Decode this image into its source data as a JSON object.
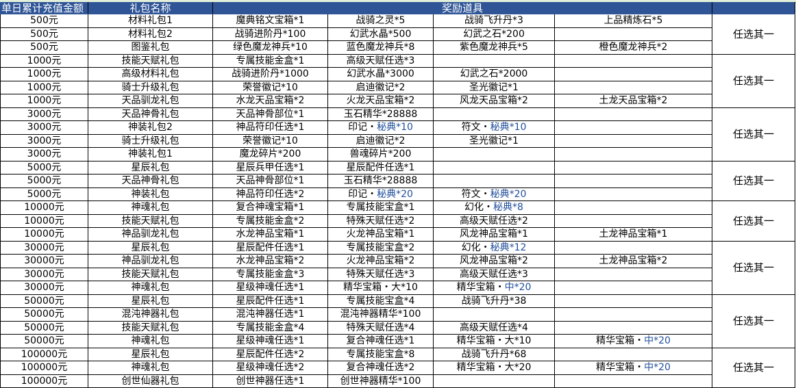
{
  "header": {
    "amount": "单日累计充值金额",
    "package_name": "礼包名称",
    "rewards": "奖励道具"
  },
  "colors": {
    "header_bg": "#2f5597",
    "highlight_text": "#1f4e9a"
  },
  "groups": [
    {
      "note": "任选其一",
      "rows": [
        {
          "amount": "500元",
          "name": "材料礼包1",
          "items": [
            "魔典铭文宝箱*1",
            "战骑之灵*5",
            "战骑飞升丹*3",
            "上品精炼石*5"
          ]
        },
        {
          "amount": "500元",
          "name": "材料礼包2",
          "items": [
            "战骑进阶丹*100",
            "幻武水晶*500",
            "幻武之石*200",
            ""
          ]
        },
        {
          "amount": "500元",
          "name": "图鉴礼包",
          "items": [
            "绿色魔龙神兵*10",
            "蓝色魔龙神兵*8",
            "紫色魔龙神兵*5",
            "橙色魔龙神兵*2"
          ]
        }
      ]
    },
    {
      "note": "任选其一",
      "rows": [
        {
          "amount": "1000元",
          "name": "技能天赋礼包",
          "items": [
            "专属技能金盒*1",
            "高级天赋任选*3",
            "",
            ""
          ]
        },
        {
          "amount": "1000元",
          "name": "高级材料礼包",
          "items": [
            "战骑进阶丹*1000",
            "幻武水晶*3000",
            "幻武之石*2000",
            ""
          ]
        },
        {
          "amount": "1000元",
          "name": "骑士升级礼包",
          "items": [
            "荣誉徽记*10",
            "启迪徽记*2",
            "圣光徽记*1",
            ""
          ]
        },
        {
          "amount": "1000元",
          "name": "天品驯龙礼包",
          "items": [
            "水龙天品宝箱*2",
            "火龙天品宝箱*2",
            "风龙天品宝箱*2",
            "土龙天品宝箱*2"
          ]
        }
      ]
    },
    {
      "note": "任选其一",
      "rows": [
        {
          "amount": "3000元",
          "name": "天品神骨礼包",
          "items": [
            "天品神骨部位*1",
            "玉石精华*28888",
            "",
            ""
          ]
        },
        {
          "amount": "3000元",
          "name": "神装礼包2",
          "items": [
            "神品符印任选*1",
            {
              "text": "印记・",
              "blue": "秘典*10"
            },
            {
              "text": "符文・",
              "blue": "秘典*10"
            },
            ""
          ]
        },
        {
          "amount": "3000元",
          "name": "骑士升级礼包",
          "items": [
            "荣誉徽记*10",
            "启迪徽记*2",
            "圣光徽记*1",
            ""
          ]
        },
        {
          "amount": "3000元",
          "name": "神装礼包1",
          "items": [
            "魔龙碎片*200",
            "兽魂碎片*200",
            "",
            ""
          ]
        }
      ]
    },
    {
      "note": "任选其一",
      "rows": [
        {
          "amount": "5000元",
          "name": "星辰礼包",
          "items": [
            "星辰兵甲任选*1",
            "星辰配件任选*1",
            "",
            ""
          ]
        },
        {
          "amount": "5000元",
          "name": "天品神骨礼包",
          "items": [
            "天品神骨部位*1",
            "玉石精华*28888",
            "",
            ""
          ]
        },
        {
          "amount": "5000元",
          "name": "神装礼包",
          "items": [
            "神品符印任选*2",
            {
              "text": "印记・",
              "blue": "秘典*20"
            },
            {
              "text": "符文・",
              "blue": "秘典*20"
            },
            ""
          ]
        }
      ]
    },
    {
      "note": "任选其一",
      "rows": [
        {
          "amount": "10000元",
          "name": "神魂礼包",
          "items": [
            "复合神魂宝箱*1",
            "专属技能宝盒*1",
            {
              "text": "幻化・",
              "blue": "秘典*8"
            },
            ""
          ]
        },
        {
          "amount": "10000元",
          "name": "技能天赋礼包",
          "items": [
            "专属技能金盒*2",
            "特殊天赋任选*2",
            "高级天赋任选*2",
            ""
          ]
        },
        {
          "amount": "10000元",
          "name": "神品驯龙礼包",
          "items": [
            "水龙神品宝箱*1",
            "火龙神品宝箱*1",
            "风龙神品宝箱*1",
            "土龙神品宝箱*1"
          ]
        }
      ]
    },
    {
      "note": "任选其一",
      "rows": [
        {
          "amount": "30000元",
          "name": "星辰礼包",
          "items": [
            "星辰配件任选*1",
            "专属技能宝盒*2",
            {
              "text": "幻化・",
              "blue": "秘典*12"
            },
            ""
          ]
        },
        {
          "amount": "30000元",
          "name": "神品驯龙礼包",
          "items": [
            "水龙神品宝箱*2",
            "火龙神品宝箱*2",
            "风龙神品宝箱*2",
            "土龙神品宝箱*2"
          ]
        },
        {
          "amount": "30000元",
          "name": "技能天赋礼包",
          "items": [
            "专属技能金盒*3",
            "特殊天赋任选*3",
            "高级天赋任选*3",
            ""
          ]
        },
        {
          "amount": "30000元",
          "name": "神魂礼包",
          "items": [
            "星级神魂任选*1",
            "精华宝箱・大*10",
            {
              "text": "精华宝箱・",
              "blue": "中*20"
            },
            ""
          ]
        }
      ]
    },
    {
      "note": "任选其一",
      "rows": [
        {
          "amount": "50000元",
          "name": "星辰礼包",
          "items": [
            "星辰配件任选*1",
            "专属技能宝盒*4",
            "战骑飞升丹*38",
            ""
          ]
        },
        {
          "amount": "50000元",
          "name": "混沌神器礼包",
          "items": [
            "混沌神器任选*1",
            "混沌神器精华*100",
            "",
            ""
          ]
        },
        {
          "amount": "50000元",
          "name": "技能天赋礼包",
          "items": [
            "专属技能金盒*4",
            "特殊天赋任选*4",
            "高级天赋任选*4",
            ""
          ]
        },
        {
          "amount": "50000元",
          "name": "神魂礼包",
          "items": [
            "星级神魂任选*1",
            "复合神魂任选*1",
            "精华宝箱・大*10",
            {
              "text": "精华宝箱・",
              "blue": "中*20"
            }
          ]
        }
      ]
    },
    {
      "note": "任选其一",
      "rows": [
        {
          "amount": "100000元",
          "name": "星辰礼包",
          "items": [
            "星辰配件任选*2",
            "专属技能宝盒*8",
            "战骑飞升丹*68",
            ""
          ]
        },
        {
          "amount": "100000元",
          "name": "神魂礼包",
          "items": [
            "星级神魂任选*2",
            "复合神魂任选*2",
            "精华宝箱・大*20",
            {
              "text": "精华宝箱・",
              "blue": "中*20"
            }
          ]
        },
        {
          "amount": "100000元",
          "name": "创世仙器礼包",
          "items": [
            "创世神器任选*1",
            "创世神器精华*100",
            "",
            ""
          ]
        }
      ]
    }
  ]
}
